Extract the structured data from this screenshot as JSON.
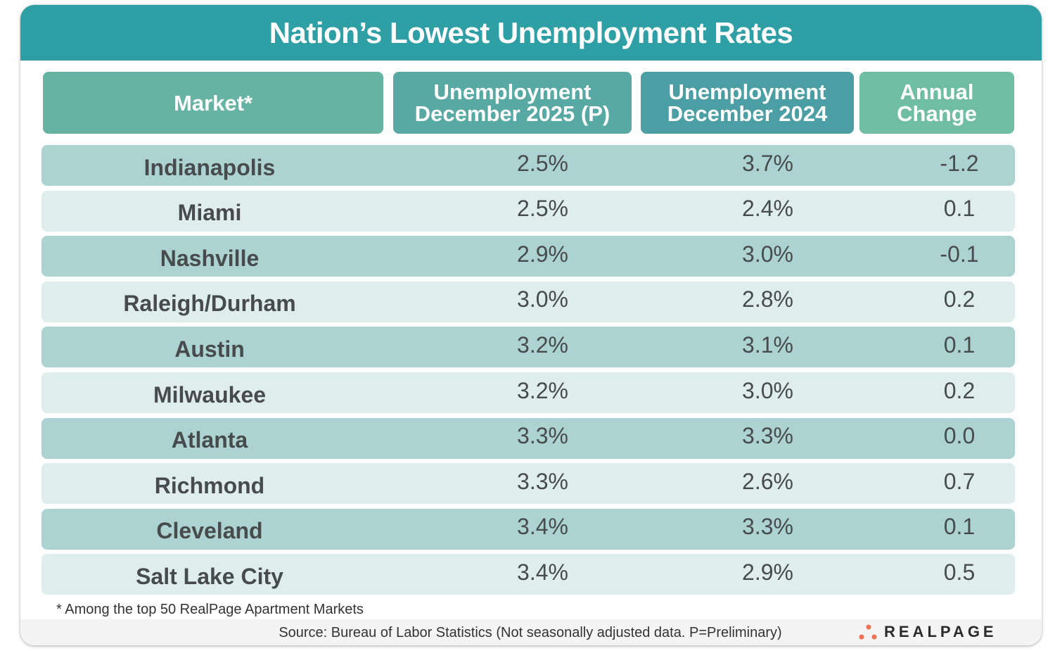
{
  "title": "Nation’s Lowest Unemployment Rates",
  "colors": {
    "title_bar": "#2e9fa5",
    "header_market": "#66b3a4",
    "header_dec2025": "#58a8a4",
    "header_dec2024": "#4b9ea3",
    "header_change": "#6fbea3",
    "row_dark": "#acd3d2",
    "row_light": "#dfeeed",
    "logo_dots": "#f0704f"
  },
  "chart_data": {
    "type": "table",
    "title": "Nation’s Lowest Unemployment Rates",
    "columns": [
      {
        "line1": "Market*",
        "line2": ""
      },
      {
        "line1": "Unemployment",
        "line2": "December 2025 (P)"
      },
      {
        "line1": "Unemployment",
        "line2": "December 2024"
      },
      {
        "line1": "Annual",
        "line2": "Change"
      }
    ],
    "rows": [
      [
        "Indianapolis",
        "2.5%",
        "3.7%",
        "-1.2"
      ],
      [
        "Miami",
        "2.5%",
        "2.4%",
        "0.1"
      ],
      [
        "Nashville",
        "2.9%",
        "3.0%",
        "-0.1"
      ],
      [
        "Raleigh/Durham",
        "3.0%",
        "2.8%",
        "0.2"
      ],
      [
        "Austin",
        "3.2%",
        "3.1%",
        "0.1"
      ],
      [
        "Milwaukee",
        "3.2%",
        "3.0%",
        "0.2"
      ],
      [
        "Atlanta",
        "3.3%",
        "3.3%",
        "0.0"
      ],
      [
        "Richmond",
        "3.3%",
        "2.6%",
        "0.7"
      ],
      [
        "Cleveland",
        "3.4%",
        "3.3%",
        "0.1"
      ],
      [
        "Salt Lake City",
        "3.4%",
        "2.9%",
        "0.5"
      ]
    ]
  },
  "footnote": "* Among the top 50 RealPage Apartment Markets",
  "source": "Source: Bureau of Labor Statistics (Not seasonally adjusted data. P=Preliminary)",
  "logo": {
    "text": "REALPAGE",
    "icon": "three-dots-logo-icon"
  }
}
